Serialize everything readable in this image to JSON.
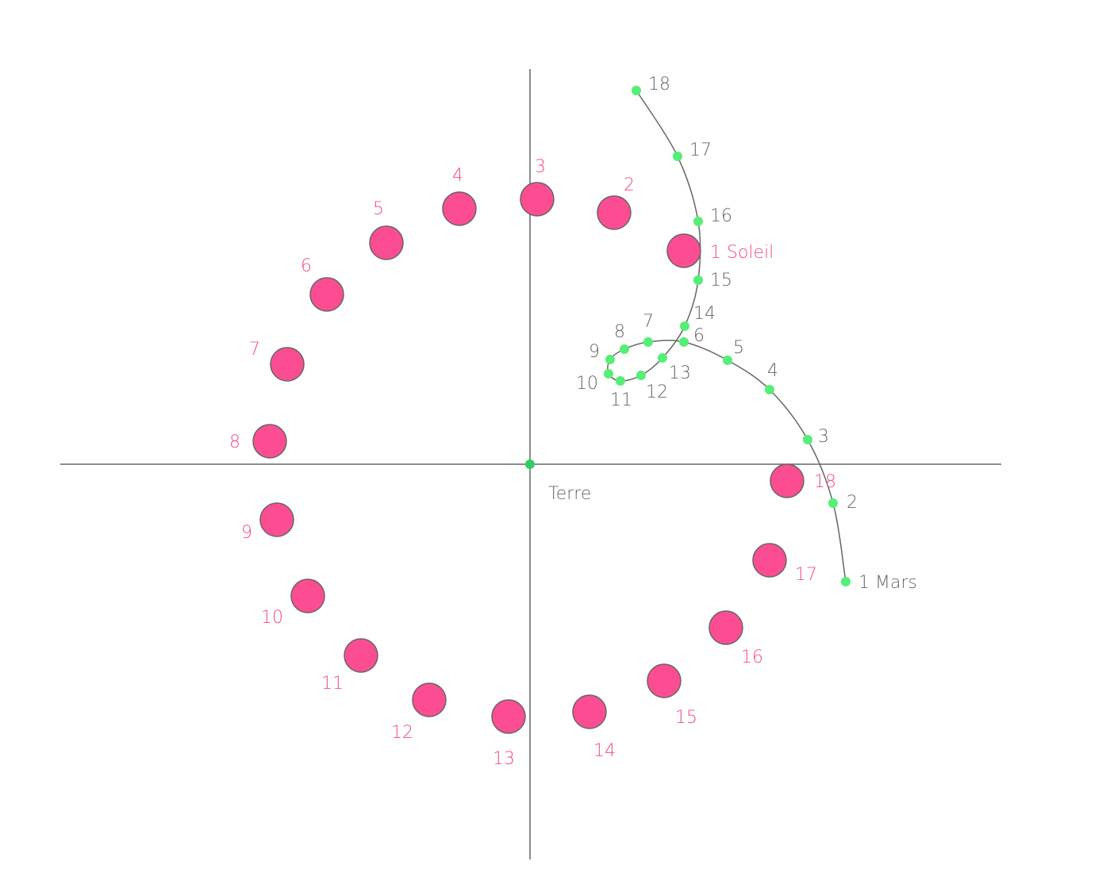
{
  "earth": {
    "label": "Terre"
  },
  "sun": {
    "labels": [
      "1 Soleil",
      "2",
      "3",
      "4",
      "5",
      "6",
      "7",
      "8",
      "9",
      "10",
      "11",
      "12",
      "13",
      "14",
      "15",
      "16",
      "17",
      "18"
    ]
  },
  "mars": {
    "labels": [
      "1 Mars",
      "2",
      "3",
      "4",
      "5",
      "6",
      "7",
      "8",
      "9",
      "10",
      "11",
      "12",
      "13",
      "14",
      "15",
      "16",
      "17",
      "18"
    ]
  }
}
